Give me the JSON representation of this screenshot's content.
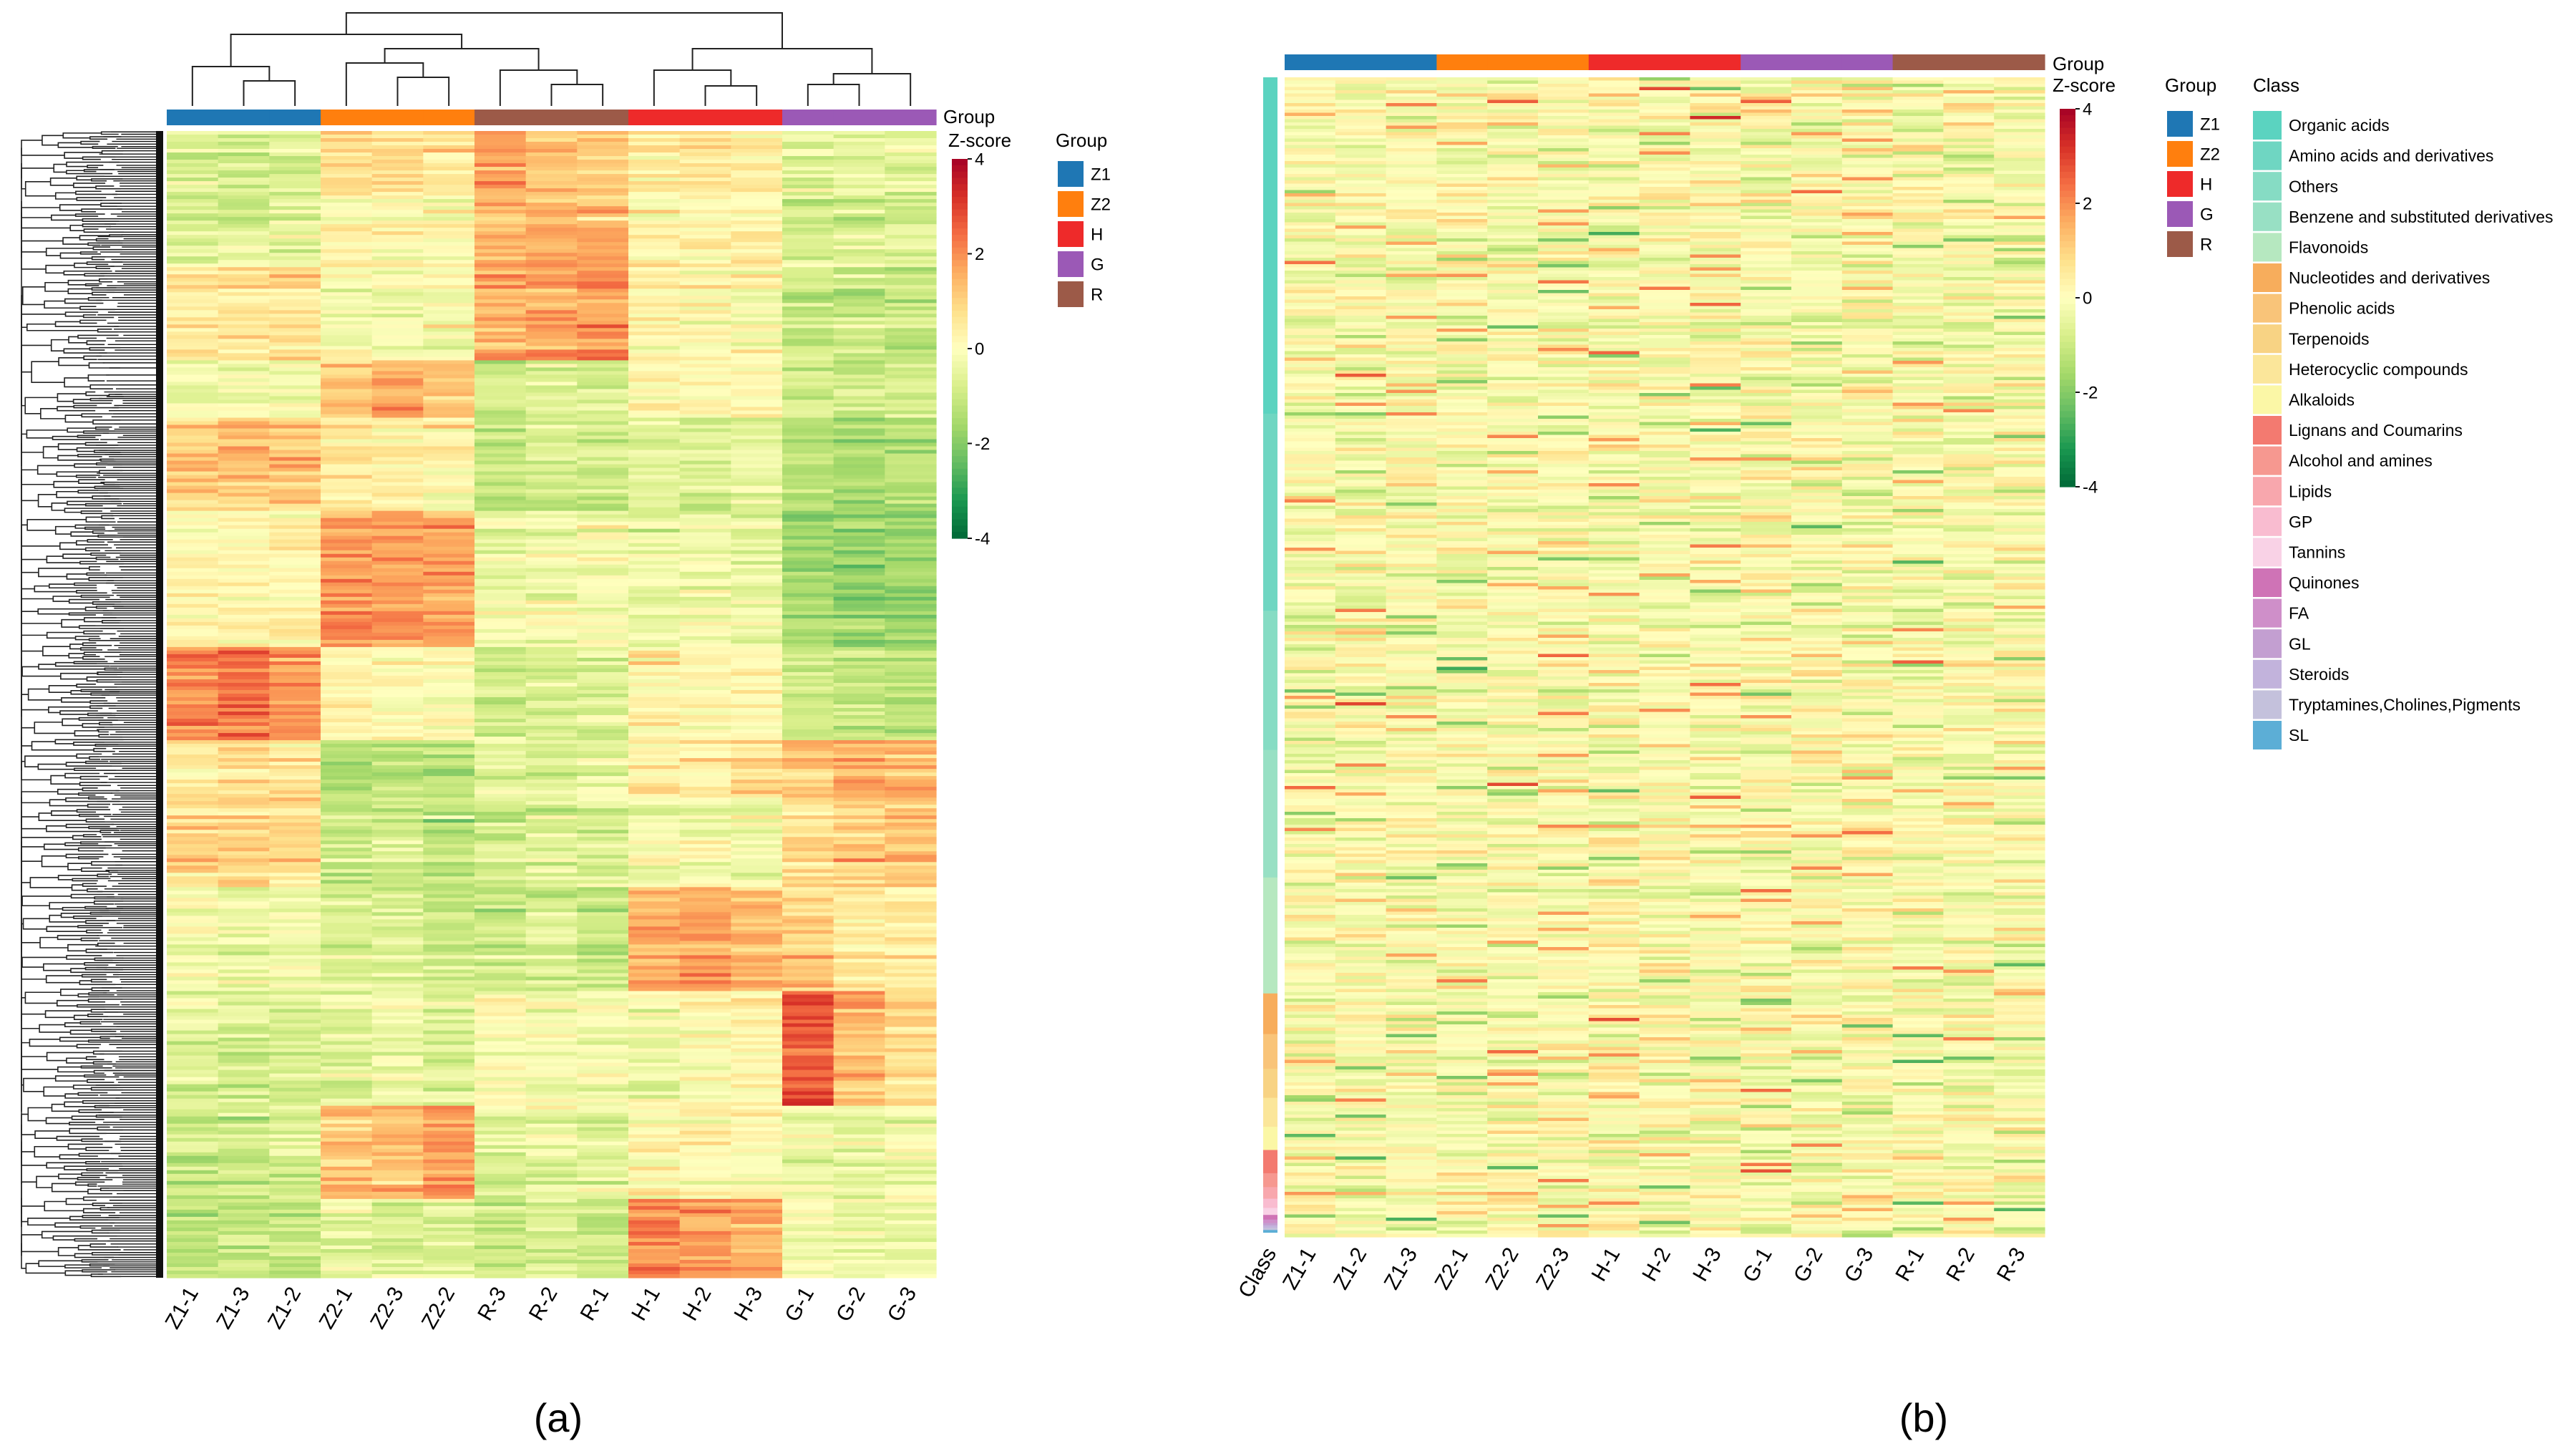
{
  "panel_labels": [
    "(a)",
    "(b)"
  ],
  "colors": {
    "groups": {
      "Z1": "#1f77b4",
      "Z2": "#ff7f0e",
      "H": "#ee2a2a",
      "G": "#9b59b6",
      "R": "#9c5a48"
    },
    "heat_scale": [
      "#006837",
      "#1a9850",
      "#66bd63",
      "#a6d96a",
      "#d9ef8b",
      "#ffffbf",
      "#fee08b",
      "#fdae61",
      "#f46d43",
      "#d73027",
      "#a50026"
    ],
    "classes": [
      "#5bd3c0",
      "#6fd6c2",
      "#86dcc4",
      "#98e0c4",
      "#b6e8c0",
      "#f7ad5c",
      "#f9c479",
      "#f8d384",
      "#fbe69a",
      "#fbf7a6",
      "#f37a70",
      "#f69890",
      "#f8a7ad",
      "#f9bcd0",
      "#f9d2e6",
      "#cf73b6",
      "#cf8fc9",
      "#c39fd1",
      "#c2b3dc",
      "#c4c1dc",
      "#5caed6"
    ]
  },
  "chart_data": [
    {
      "type": "heatmap",
      "panel": "(a)",
      "columns": [
        "Z1-1",
        "Z1-3",
        "Z1-2",
        "Z2-1",
        "Z2-3",
        "Z2-2",
        "R-3",
        "R-2",
        "R-1",
        "H-1",
        "H-2",
        "H-3",
        "G-1",
        "G-2",
        "G-3"
      ],
      "column_groups": [
        "Z1",
        "Z1",
        "Z1",
        "Z2",
        "Z2",
        "Z2",
        "R",
        "R",
        "R",
        "H",
        "H",
        "H",
        "G",
        "G",
        "G"
      ],
      "group_bar_label": "Group",
      "colorbar": {
        "title": "Z-score",
        "range": [
          -4,
          4
        ],
        "ticks": [
          "4",
          "2",
          "0",
          "-2",
          "-4"
        ]
      },
      "legend": {
        "title": "Group",
        "entries": [
          "Z1",
          "Z2",
          "H",
          "G",
          "R"
        ]
      },
      "row_dendrogram": true,
      "column_dendrogram": true,
      "row_blocks": [
        {
          "from": 0.0,
          "to": 0.06,
          "values": [
            -0.7,
            -0.9,
            -0.6,
            0.8,
            0.6,
            0.5,
            1.8,
            1.2,
            1.0,
            0.5,
            0.6,
            0.4,
            -0.6,
            -0.5,
            -0.5
          ]
        },
        {
          "from": 0.06,
          "to": 0.12,
          "values": [
            -0.8,
            -0.7,
            -0.6,
            0.3,
            0.2,
            0.1,
            1.4,
            1.6,
            1.5,
            0.3,
            0.2,
            0.3,
            -0.9,
            -0.8,
            -0.7
          ]
        },
        {
          "from": 0.12,
          "to": 0.2,
          "values": [
            0.5,
            0.6,
            0.7,
            -0.3,
            -0.2,
            -0.1,
            1.5,
            1.7,
            1.9,
            0.4,
            0.2,
            0.1,
            -0.9,
            -1.0,
            -1.1
          ]
        },
        {
          "from": 0.2,
          "to": 0.25,
          "values": [
            -0.3,
            -0.2,
            -0.4,
            1.2,
            1.5,
            1.3,
            -1.0,
            -0.6,
            -0.8,
            0.1,
            0.2,
            0.2,
            -1.0,
            -0.9,
            -0.8
          ]
        },
        {
          "from": 0.25,
          "to": 0.33,
          "values": [
            1.0,
            1.3,
            1.1,
            0.5,
            0.4,
            0.2,
            -1.0,
            -0.8,
            -0.9,
            -0.5,
            -0.6,
            -0.5,
            -1.3,
            -1.5,
            -1.3
          ]
        },
        {
          "from": 0.33,
          "to": 0.45,
          "values": [
            0.3,
            0.2,
            0.3,
            1.8,
            1.9,
            1.7,
            -0.3,
            -0.2,
            -0.1,
            -0.4,
            -0.3,
            -0.4,
            -1.6,
            -1.8,
            -1.7
          ]
        },
        {
          "from": 0.45,
          "to": 0.53,
          "values": [
            2.0,
            2.2,
            1.9,
            0.2,
            0.1,
            0.0,
            -1.0,
            -0.8,
            -0.7,
            0.3,
            0.1,
            0.2,
            -1.0,
            -1.1,
            -1.2
          ]
        },
        {
          "from": 0.53,
          "to": 0.58,
          "values": [
            0.6,
            0.7,
            0.5,
            -1.4,
            -1.2,
            -1.3,
            -0.6,
            -0.7,
            -0.5,
            0.3,
            0.5,
            0.8,
            1.3,
            1.5,
            1.4
          ]
        },
        {
          "from": 0.58,
          "to": 0.66,
          "values": [
            1.0,
            0.9,
            0.8,
            -1.0,
            -0.9,
            -1.2,
            -0.8,
            -0.6,
            -0.7,
            -0.2,
            -0.1,
            -0.3,
            0.8,
            1.0,
            1.2
          ]
        },
        {
          "from": 0.66,
          "to": 0.75,
          "values": [
            -0.2,
            -0.4,
            -0.2,
            -0.7,
            -0.6,
            -0.9,
            -0.9,
            -0.8,
            -1.0,
            1.6,
            1.8,
            1.4,
            1.0,
            0.5,
            0.4
          ]
        },
        {
          "from": 0.75,
          "to": 0.85,
          "values": [
            -0.5,
            -0.7,
            -0.6,
            -0.4,
            -0.3,
            -0.5,
            0.2,
            -0.1,
            0.0,
            -0.2,
            0.1,
            0.3,
            2.8,
            1.5,
            1.0
          ]
        },
        {
          "from": 0.85,
          "to": 0.93,
          "values": [
            -0.9,
            -1.0,
            -0.8,
            1.2,
            1.4,
            1.8,
            -0.6,
            -0.4,
            -0.5,
            0.3,
            0.2,
            0.1,
            -0.3,
            -0.4,
            -0.2
          ]
        },
        {
          "from": 0.93,
          "to": 1.0,
          "values": [
            -1.2,
            -1.0,
            -1.1,
            -0.5,
            -0.7,
            -0.6,
            -0.9,
            -0.8,
            -1.0,
            2.0,
            1.8,
            1.6,
            -0.2,
            -0.3,
            -0.4
          ]
        }
      ]
    },
    {
      "type": "heatmap",
      "panel": "(b)",
      "columns": [
        "Z1-1",
        "Z1-2",
        "Z1-3",
        "Z2-1",
        "Z2-2",
        "Z2-3",
        "H-1",
        "H-2",
        "H-3",
        "G-1",
        "G-2",
        "G-3",
        "R-1",
        "R-2",
        "R-3"
      ],
      "column_groups": [
        "Z1",
        "Z1",
        "Z1",
        "Z2",
        "Z2",
        "Z2",
        "H",
        "H",
        "H",
        "G",
        "G",
        "G",
        "R",
        "R",
        "R"
      ],
      "row_annotation_label": "Class",
      "group_bar_label": "Group",
      "colorbar": {
        "title": "Z-score",
        "range": [
          -4,
          4
        ],
        "ticks": [
          "4",
          "2",
          "0",
          "-2",
          "-4"
        ]
      },
      "legend_group": {
        "title": "Group",
        "entries": [
          "Z1",
          "Z2",
          "H",
          "G",
          "R"
        ]
      },
      "legend_class": {
        "title": "Class",
        "entries": [
          "Organic acids",
          "Amino acids and derivatives",
          "Others",
          "Benzene and substituted derivatives",
          "Flavonoids",
          "Nucleotides and derivatives",
          "Phenolic acids",
          "Terpenoids",
          "Heterocyclic compounds",
          "Alkaloids",
          "Lignans and Coumarins",
          "Alcohol and amines",
          "Lipids",
          "GP",
          "Tannins",
          "Quinones",
          "FA",
          "GL",
          "Steroids",
          "Tryptamines,Cholines,Pigments",
          "SL"
        ]
      },
      "class_row_fractions": [
        0.29,
        0.17,
        0.12,
        0.11,
        0.1,
        0.035,
        0.03,
        0.025,
        0.025,
        0.02,
        0.02,
        0.012,
        0.01,
        0.008,
        0.006,
        0.004,
        0.003,
        0.002,
        0.002,
        0.002,
        0.002
      ],
      "values_pattern": "no strong block structure; scattered low-amplitude z-scores between -2 and 2"
    }
  ]
}
